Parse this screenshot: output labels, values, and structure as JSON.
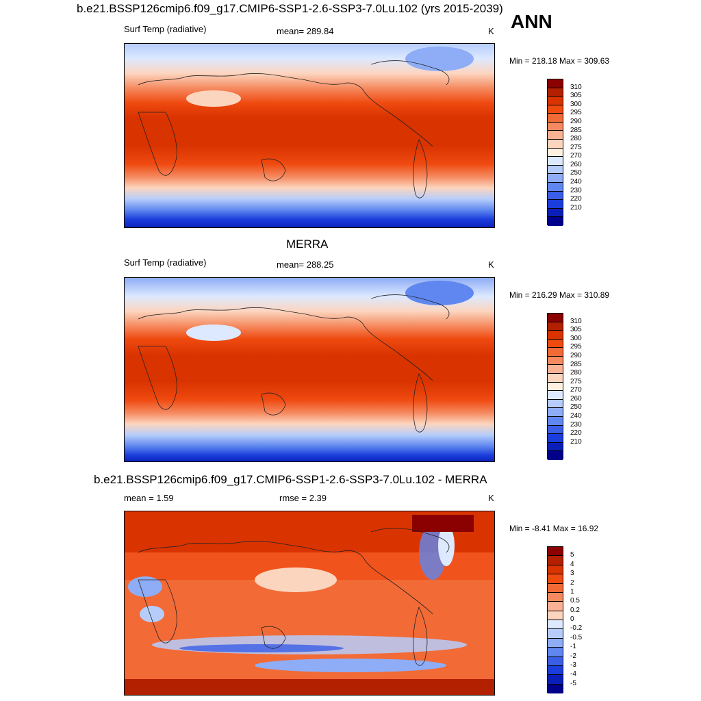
{
  "panel1": {
    "title": "b.e21.BSSP126cmip6.f09_g17.CMIP6-SSP1-2.6-SSP3-7.0Lu.102 (yrs 2015-2039)",
    "variable": "Surf Temp (radiative)",
    "mean": "mean= 289.84",
    "units": "K",
    "minmax": "Min = 218.18 Max = 309.63"
  },
  "season": "ANN",
  "panel2": {
    "title": "MERRA",
    "variable": "Surf Temp (radiative)",
    "mean": "mean= 288.25",
    "units": "K",
    "minmax": "Min = 216.29 Max = 310.89"
  },
  "panel3": {
    "title": "b.e21.BSSP126cmip6.f09_g17.CMIP6-SSP1-2.6-SSP3-7.0Lu.102 - MERRA",
    "mean": "mean =   1.59",
    "rmse": "rmse =   2.39",
    "units": "K",
    "minmax": "Min =  -8.41 Max =  16.92"
  },
  "abs_colorbar": {
    "labels": [
      "310",
      "305",
      "300",
      "295",
      "290",
      "285",
      "280",
      "275",
      "270",
      "260",
      "250",
      "240",
      "230",
      "220",
      "210"
    ],
    "colors": [
      "#8b0000",
      "#b22000",
      "#d93300",
      "#ef4a10",
      "#f26a36",
      "#f58a60",
      "#f9b293",
      "#fcd5bf",
      "#fff1e0",
      "#dde9ff",
      "#b6cdfb",
      "#8eadf6",
      "#5f87ef",
      "#3a5fe6",
      "#1a3ddb",
      "#0b1fb8",
      "#00008b"
    ]
  },
  "diff_colorbar": {
    "labels": [
      "5",
      "4",
      "3",
      "2",
      "1",
      "0.5",
      "0.2",
      "0",
      "-0.2",
      "-0.5",
      "-1",
      "-2",
      "-3",
      "-4",
      "-5"
    ],
    "colors": [
      "#8b0000",
      "#b22000",
      "#d93300",
      "#ef4a10",
      "#f26a36",
      "#f58a60",
      "#f9b293",
      "#fcd5bf",
      "#dde9ff",
      "#b6cdfb",
      "#8eadf6",
      "#5f87ef",
      "#3a5fe6",
      "#1a3ddb",
      "#0b1fb8",
      "#00008b"
    ]
  }
}
